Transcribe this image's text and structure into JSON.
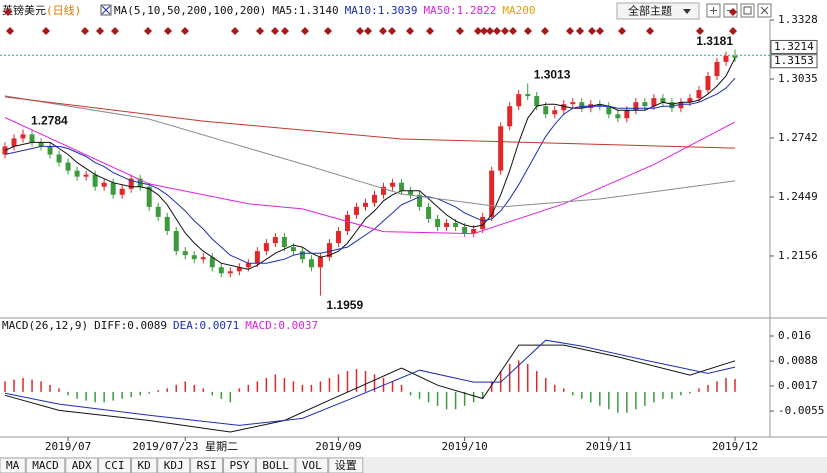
{
  "chart_data": [
    {
      "type": "candlestick",
      "title": "英镑美元",
      "subtitle": "(日线)",
      "indicator": "MA(5,10,50,200,100,200)",
      "categories": [
        null,
        null,
        null,
        null,
        null,
        null,
        null,
        "2019/07",
        null,
        null,
        null,
        null,
        null,
        null,
        null,
        null,
        null,
        null,
        null,
        null,
        "2019/07/23 星期二",
        null,
        null,
        null,
        null,
        null,
        null,
        null,
        null,
        null,
        null,
        null,
        null,
        null,
        null,
        null,
        null,
        "2019/09",
        null,
        null,
        null,
        null,
        null,
        null,
        null,
        null,
        null,
        null,
        null,
        null,
        null,
        "2019/10",
        null,
        null,
        null,
        null,
        null,
        null,
        null,
        null,
        null,
        null,
        null,
        null,
        null,
        null,
        null,
        "2019/11",
        null,
        null,
        null,
        null,
        null,
        null,
        null,
        null,
        null,
        null,
        null,
        null,
        null,
        "2019/12"
      ],
      "cursor_index": 20,
      "up_color": "#e02828",
      "down_color": "#3c9a3c",
      "open": [
        1.266,
        1.27,
        1.274,
        1.276,
        1.272,
        1.27,
        1.266,
        1.262,
        1.258,
        1.255,
        1.256,
        1.25,
        1.252,
        1.246,
        1.249,
        1.254,
        1.25,
        1.24,
        1.235,
        1.228,
        1.218,
        1.216,
        1.214,
        1.215,
        1.21,
        1.207,
        1.208,
        1.21,
        1.212,
        1.218,
        1.222,
        1.225,
        1.22,
        1.218,
        1.214,
        1.21,
        1.215,
        1.222,
        1.228,
        1.236,
        1.24,
        1.242,
        1.246,
        1.25,
        1.252,
        1.248,
        1.246,
        1.24,
        1.234,
        1.23,
        1.232,
        1.23,
        1.227,
        1.229,
        1.235,
        1.258,
        1.28,
        1.29,
        1.296,
        1.295,
        1.29,
        1.286,
        1.288,
        1.291,
        1.292,
        1.289,
        1.291,
        1.29,
        1.286,
        1.284,
        1.288,
        1.292,
        1.29,
        1.294,
        1.292,
        1.289,
        1.292,
        1.294,
        1.298,
        1.305,
        1.312,
        1.315
      ],
      "high": [
        1.272,
        1.276,
        1.2784,
        1.278,
        1.274,
        1.272,
        1.268,
        1.264,
        1.26,
        1.258,
        1.258,
        1.254,
        1.254,
        1.251,
        1.256,
        1.256,
        1.252,
        1.242,
        1.237,
        1.23,
        1.22,
        1.218,
        1.217,
        1.217,
        1.212,
        1.21,
        1.212,
        1.214,
        1.22,
        1.224,
        1.227,
        1.227,
        1.222,
        1.22,
        1.216,
        1.217,
        1.224,
        1.23,
        1.238,
        1.242,
        1.244,
        1.248,
        1.252,
        1.254,
        1.254,
        1.25,
        1.248,
        1.242,
        1.236,
        1.234,
        1.234,
        1.232,
        1.231,
        1.237,
        1.26,
        1.282,
        1.292,
        1.298,
        1.3013,
        1.297,
        1.292,
        1.29,
        1.293,
        1.294,
        1.294,
        1.293,
        1.293,
        1.292,
        1.288,
        1.29,
        1.294,
        1.294,
        1.296,
        1.296,
        1.294,
        1.294,
        1.296,
        1.3,
        1.307,
        1.314,
        1.317,
        1.3181
      ],
      "low": [
        1.264,
        1.268,
        1.272,
        1.27,
        1.268,
        1.264,
        1.26,
        1.256,
        1.253,
        1.253,
        1.248,
        1.248,
        1.244,
        1.244,
        1.247,
        1.248,
        1.238,
        1.233,
        1.226,
        1.216,
        1.214,
        1.212,
        1.212,
        1.208,
        1.205,
        1.205,
        1.206,
        1.208,
        1.21,
        1.216,
        1.22,
        1.218,
        1.216,
        1.212,
        1.208,
        1.1959,
        1.213,
        1.22,
        1.226,
        1.234,
        1.238,
        1.24,
        1.244,
        1.248,
        1.246,
        1.244,
        1.238,
        1.232,
        1.228,
        1.228,
        1.228,
        1.225,
        1.225,
        1.227,
        1.233,
        1.256,
        1.278,
        1.288,
        1.293,
        1.288,
        1.284,
        1.284,
        1.286,
        1.289,
        1.287,
        1.287,
        1.288,
        1.284,
        1.282,
        1.282,
        1.286,
        1.288,
        1.288,
        1.29,
        1.287,
        1.287,
        1.29,
        1.292,
        1.296,
        1.303,
        1.31,
        1.312
      ],
      "close": [
        1.27,
        1.274,
        1.276,
        1.272,
        1.27,
        1.266,
        1.262,
        1.258,
        1.255,
        1.256,
        1.25,
        1.252,
        1.246,
        1.249,
        1.254,
        1.25,
        1.24,
        1.235,
        1.228,
        1.218,
        1.216,
        1.214,
        1.215,
        1.21,
        1.207,
        1.208,
        1.21,
        1.212,
        1.218,
        1.222,
        1.225,
        1.22,
        1.218,
        1.214,
        1.21,
        1.215,
        1.222,
        1.228,
        1.236,
        1.24,
        1.242,
        1.246,
        1.25,
        1.252,
        1.248,
        1.246,
        1.24,
        1.234,
        1.23,
        1.232,
        1.23,
        1.227,
        1.229,
        1.235,
        1.258,
        1.28,
        1.29,
        1.296,
        1.295,
        1.29,
        1.286,
        1.288,
        1.291,
        1.292,
        1.289,
        1.291,
        1.29,
        1.286,
        1.284,
        1.288,
        1.292,
        1.29,
        1.294,
        1.292,
        1.289,
        1.292,
        1.294,
        1.298,
        1.305,
        1.312,
        1.315,
        1.314
      ],
      "series": [
        {
          "name": "MA5:",
          "color": "#111111",
          "last_label": "1.3140",
          "values": [
            1.268,
            1.27,
            1.271,
            1.272,
            1.272,
            1.272,
            1.269,
            1.266,
            1.262,
            1.259,
            1.256,
            1.254,
            1.252,
            1.251,
            1.25,
            1.25,
            1.249,
            1.246,
            1.241,
            1.234,
            1.227,
            1.222,
            1.218,
            1.215,
            1.212,
            1.211,
            1.21,
            1.209,
            1.211,
            1.214,
            1.217,
            1.219,
            1.221,
            1.22,
            1.217,
            1.215,
            1.216,
            1.218,
            1.222,
            1.228,
            1.234,
            1.238,
            1.243,
            1.246,
            1.248,
            1.248,
            1.248,
            1.244,
            1.24,
            1.236,
            1.233,
            1.231,
            1.23,
            1.231,
            1.236,
            1.246,
            1.258,
            1.272,
            1.284,
            1.29,
            1.291,
            1.291,
            1.29,
            1.289,
            1.289,
            1.29,
            1.291,
            1.29,
            1.288,
            1.288,
            1.288,
            1.288,
            1.29,
            1.292,
            1.291,
            1.292,
            1.292,
            1.293,
            1.296,
            1.3,
            1.305,
            1.314
          ]
        },
        {
          "name": "MA10:",
          "color": "#1a2fb0",
          "last_label": "1.3039",
          "values": [
            1.266,
            1.267,
            1.268,
            1.269,
            1.27,
            1.27,
            1.27,
            1.269,
            1.267,
            1.265,
            1.262,
            1.26,
            1.257,
            1.255,
            1.253,
            1.252,
            1.251,
            1.249,
            1.246,
            1.242,
            1.238,
            1.233,
            1.229,
            1.224,
            1.22,
            1.216,
            1.214,
            1.212,
            1.212,
            1.212,
            1.213,
            1.214,
            1.216,
            1.217,
            1.217,
            1.217,
            1.218,
            1.219,
            1.22,
            1.223,
            1.226,
            1.229,
            1.233,
            1.237,
            1.241,
            1.243,
            1.245,
            1.245,
            1.244,
            1.242,
            1.24,
            1.237,
            1.235,
            1.233,
            1.234,
            1.238,
            1.244,
            1.251,
            1.259,
            1.267,
            1.275,
            1.281,
            1.286,
            1.289,
            1.29,
            1.29,
            1.29,
            1.29,
            1.289,
            1.289,
            1.289,
            1.289,
            1.289,
            1.29,
            1.29,
            1.291,
            1.291,
            1.292,
            1.294,
            1.296,
            1.299,
            1.3039
          ]
        },
        {
          "name": "MA50:",
          "color": "#e020e0",
          "last_label": "1.2822",
          "x": [
            0,
            16,
            27,
            33,
            42,
            52,
            62,
            72,
            81
          ],
          "values": [
            1.2844,
            1.2514,
            1.2415,
            1.239,
            1.2277,
            1.2267,
            1.2415,
            1.261,
            1.2822
          ]
        },
        {
          "name": "MA200",
          "color": "#8c8c8c",
          "legend_color": "#e0a000",
          "x": [
            0,
            16,
            33,
            44,
            55,
            66,
            81
          ],
          "values": [
            1.2951,
            1.2836,
            1.2613,
            1.2464,
            1.24,
            1.2439,
            1.2529
          ]
        },
        {
          "color": "#c0392b",
          "x": [
            0,
            22,
            44,
            81
          ],
          "values": [
            1.2946,
            1.2826,
            1.2737,
            1.2692
          ]
        }
      ],
      "ylim": [
        1.1848,
        1.3328
      ],
      "yticks": [
        1.2156,
        1.2449,
        1.2742,
        1.3035,
        1.3328
      ],
      "right_labels": [
        1.3214,
        1.3153
      ]
    },
    {
      "type": "macd",
      "title": "MACD(26,12,9)",
      "series": [
        {
          "name": "DIFF:",
          "color": "#111111",
          "last_label": "0.0089",
          "x": [
            0,
            6,
            16,
            25,
            31,
            36,
            44,
            48,
            53,
            57,
            62,
            68,
            76,
            81
          ],
          "values": [
            -0.001,
            -0.0053,
            -0.0082,
            -0.0115,
            -0.0082,
            -0.0024,
            0.0068,
            0.0019,
            -0.0019,
            0.0134,
            0.0134,
            0.01,
            0.0048,
            0.0089
          ]
        },
        {
          "name": "DEA:",
          "color": "#1a2fb0",
          "last_label": "0.0071",
          "x": [
            0,
            6,
            16,
            26,
            33,
            38,
            46,
            52,
            55,
            60,
            64,
            71,
            78,
            81
          ],
          "values": [
            -0.0004,
            -0.0035,
            -0.0067,
            -0.0096,
            -0.0076,
            -0.0024,
            0.0062,
            0.0028,
            0.0028,
            0.0148,
            0.0131,
            0.0091,
            0.0053,
            0.0071
          ]
        }
      ],
      "hist_name": "MACD:",
      "hist_color": "#e020e0",
      "hist_last_label": "0.0037",
      "up_color": "#e02828",
      "down_color": "#3c9a3c",
      "hist": [
        0.003,
        0.0035,
        0.004,
        0.0035,
        0.003,
        0.002,
        0.001,
        -0.001,
        -0.002,
        -0.0025,
        -0.003,
        -0.003,
        -0.0025,
        -0.002,
        -0.0015,
        -0.001,
        -0.0005,
        0.0005,
        0.001,
        0.002,
        0.003,
        0.002,
        0.001,
        -0.001,
        -0.002,
        -0.003,
        0.001,
        0.002,
        0.003,
        0.004,
        0.005,
        0.004,
        0.003,
        0.002,
        0.002,
        0.003,
        0.004,
        0.005,
        0.006,
        0.0065,
        0.006,
        0.005,
        0.004,
        0.003,
        0.002,
        -0.001,
        -0.002,
        -0.003,
        -0.004,
        -0.005,
        -0.005,
        -0.004,
        -0.003,
        -0.002,
        0.003,
        0.006,
        0.008,
        0.009,
        0.008,
        0.006,
        0.004,
        0.002,
        0.001,
        -0.001,
        -0.002,
        -0.003,
        -0.004,
        -0.005,
        -0.006,
        -0.006,
        -0.005,
        -0.004,
        -0.003,
        -0.002,
        -0.002,
        -0.001,
        -0.0005,
        0.001,
        0.002,
        0.003,
        0.004,
        0.0037
      ],
      "ylim": [
        -0.0115,
        0.016
      ],
      "yticks": [
        -0.0055,
        0.0017,
        0.0088,
        0.016
      ]
    }
  ],
  "toolbar": {
    "theme": "全部主题"
  },
  "tabs": [
    "MA",
    "MACD",
    "ADX",
    "CCI",
    "KD",
    "KDJ",
    "RSI",
    "PSY",
    "BOLL",
    "VOL",
    "设置"
  ]
}
